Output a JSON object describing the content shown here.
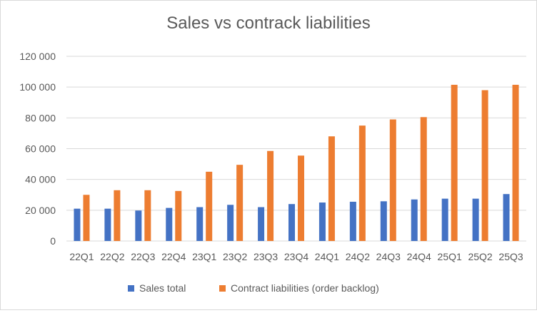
{
  "chart_data": {
    "type": "bar",
    "title": "Sales vs contrack liabilities",
    "xlabel": "",
    "ylabel": "",
    "categories": [
      "22Q1",
      "22Q2",
      "22Q3",
      "22Q4",
      "23Q1",
      "23Q2",
      "23Q3",
      "23Q4",
      "24Q1",
      "24Q2",
      "24Q3",
      "24Q4",
      "25Q1",
      "25Q2",
      "25Q3"
    ],
    "series": [
      {
        "name": "Sales total",
        "color": "#4472c4",
        "values": [
          21000,
          21000,
          19800,
          21500,
          22000,
          23500,
          22000,
          24000,
          25000,
          25500,
          25800,
          27000,
          27500,
          27500,
          30500
        ]
      },
      {
        "name": "Contract liabilities (order backlog)",
        "color": "#ed7d31",
        "values": [
          30000,
          33000,
          33000,
          32500,
          45000,
          49500,
          58500,
          55500,
          68000,
          75000,
          79000,
          80500,
          101500,
          98000,
          101500
        ]
      }
    ],
    "ylim": [
      0,
      120000
    ],
    "yticks": [
      0,
      20000,
      40000,
      60000,
      80000,
      100000,
      120000
    ],
    "ytick_labels": [
      "0",
      "20 000",
      "40 000",
      "60 000",
      "80 000",
      "100 000",
      "120 000"
    ],
    "grid": true,
    "gridline_color": "#d9d9d9",
    "legend_position": "bottom"
  }
}
